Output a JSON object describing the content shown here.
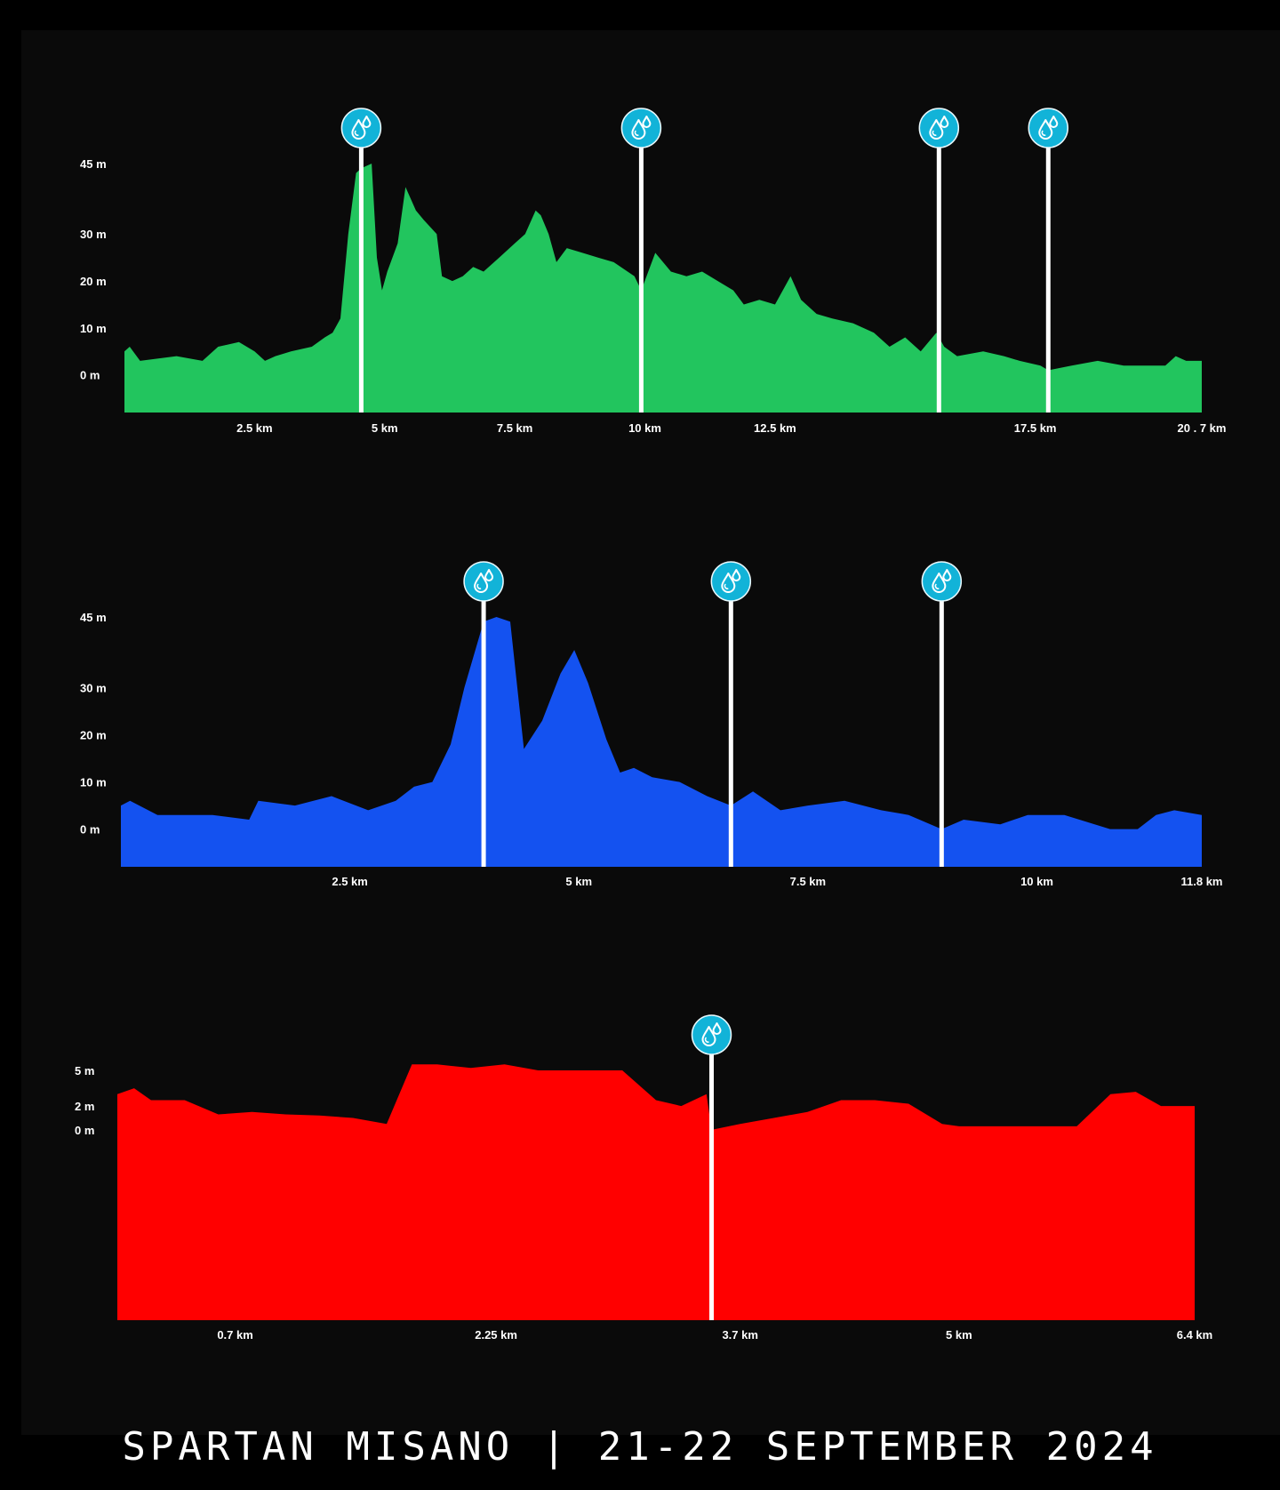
{
  "footer": "SPARTAN MISANO | 21-22 SEPTEMBER 2024",
  "chart_data": [
    {
      "type": "area",
      "color": "#22c55e",
      "xlim": [
        0,
        20.7
      ],
      "ylim": [
        -8,
        45
      ],
      "xticks": [
        {
          "v": 2.5,
          "label": "2.5 km"
        },
        {
          "v": 5,
          "label": "5 km"
        },
        {
          "v": 7.5,
          "label": "7.5 km"
        },
        {
          "v": 10,
          "label": "10 km"
        },
        {
          "v": 12.5,
          "label": "12.5 km"
        },
        {
          "v": 17.5,
          "label": "17.5 km"
        },
        {
          "v": 20.7,
          "label": "20 . 7 km"
        }
      ],
      "yticks": [
        {
          "v": 45,
          "label": "45 m"
        },
        {
          "v": 30,
          "label": "30 m"
        },
        {
          "v": 20,
          "label": "20 m"
        },
        {
          "v": 10,
          "label": "10 m"
        },
        {
          "v": 0,
          "label": "0 m"
        }
      ],
      "water_stations_km": [
        4.55,
        9.93,
        15.65,
        17.75
      ],
      "x": [
        0,
        0.1,
        0.3,
        1.0,
        1.5,
        1.8,
        2.2,
        2.5,
        2.7,
        2.9,
        3.2,
        3.6,
        3.85,
        4.0,
        4.15,
        4.3,
        4.45,
        4.55,
        4.75,
        4.85,
        4.95,
        5.05,
        5.25,
        5.4,
        5.6,
        5.75,
        6.0,
        6.1,
        6.3,
        6.5,
        6.7,
        6.9,
        7.2,
        7.5,
        7.7,
        7.9,
        8.0,
        8.15,
        8.3,
        8.5,
        8.8,
        9.1,
        9.4,
        9.8,
        9.93,
        10.2,
        10.5,
        10.8,
        11.1,
        11.4,
        11.7,
        11.9,
        12.2,
        12.5,
        12.8,
        13.0,
        13.3,
        13.6,
        14.0,
        14.4,
        14.7,
        15.0,
        15.3,
        15.6,
        15.75,
        16.0,
        16.5,
        16.9,
        17.2,
        17.6,
        17.75,
        18.2,
        18.7,
        19.2,
        19.6,
        20.0,
        20.2,
        20.4,
        20.7
      ],
      "y": [
        5,
        6,
        3,
        4,
        3,
        6,
        7,
        5,
        3,
        4,
        5,
        6,
        8,
        9,
        12,
        30,
        43,
        44,
        45,
        25,
        18,
        22,
        28,
        40,
        35,
        33,
        30,
        21,
        20,
        21,
        23,
        22,
        25,
        28,
        30,
        35,
        34,
        30,
        24,
        27,
        26,
        25,
        24,
        21,
        18,
        26,
        22,
        21,
        22,
        20,
        18,
        15,
        16,
        15,
        21,
        16,
        13,
        12,
        11,
        9,
        6,
        8,
        5,
        9,
        6,
        4,
        5,
        4,
        3,
        2,
        1,
        2,
        3,
        2,
        2,
        2,
        4,
        3,
        3
      ]
    },
    {
      "type": "area",
      "color": "#1452f0",
      "xlim": [
        0,
        11.8
      ],
      "ylim": [
        -8,
        45
      ],
      "xticks": [
        {
          "v": 2.5,
          "label": "2.5 km"
        },
        {
          "v": 5,
          "label": "5 km"
        },
        {
          "v": 7.5,
          "label": "7.5 km"
        },
        {
          "v": 10,
          "label": "10 km"
        },
        {
          "v": 11.8,
          "label": "11.8 km"
        }
      ],
      "yticks": [
        {
          "v": 45,
          "label": "45 m"
        },
        {
          "v": 30,
          "label": "30 m"
        },
        {
          "v": 20,
          "label": "20 m"
        },
        {
          "v": 10,
          "label": "10 m"
        },
        {
          "v": 0,
          "label": "0 m"
        }
      ],
      "water_stations_km": [
        3.96,
        6.66,
        8.96
      ],
      "x": [
        0,
        0.1,
        0.4,
        1.0,
        1.4,
        1.5,
        1.9,
        2.3,
        2.7,
        3.0,
        3.2,
        3.4,
        3.6,
        3.75,
        3.96,
        4.1,
        4.25,
        4.4,
        4.6,
        4.8,
        4.95,
        5.1,
        5.3,
        5.45,
        5.6,
        5.8,
        6.1,
        6.4,
        6.66,
        6.9,
        7.2,
        7.5,
        7.9,
        8.3,
        8.6,
        8.96,
        9.2,
        9.6,
        9.9,
        10.3,
        10.8,
        11.1,
        11.3,
        11.5,
        11.8
      ],
      "y": [
        5,
        6,
        3,
        3,
        2,
        6,
        5,
        7,
        4,
        6,
        9,
        10,
        18,
        30,
        44,
        45,
        44,
        17,
        23,
        33,
        38,
        31,
        19,
        12,
        13,
        11,
        10,
        7,
        5,
        8,
        4,
        5,
        6,
        4,
        3,
        0,
        2,
        1,
        3,
        3,
        0,
        0,
        3,
        4,
        3
      ]
    },
    {
      "type": "area",
      "color": "#ff0000",
      "xlim": [
        0,
        6.4
      ],
      "ylim": [
        -16,
        5
      ],
      "xticks": [
        {
          "v": 0.7,
          "label": "0.7 km"
        },
        {
          "v": 2.25,
          "label": "2.25 km"
        },
        {
          "v": 3.7,
          "label": "3.7 km"
        },
        {
          "v": 5,
          "label": "5 km"
        },
        {
          "v": 6.4,
          "label": "6.4 km"
        }
      ],
      "yticks": [
        {
          "v": 5,
          "label": "5 m"
        },
        {
          "v": 2,
          "label": "2 m"
        },
        {
          "v": 0,
          "label": "0 m"
        }
      ],
      "water_stations_km": [
        3.53
      ],
      "x": [
        0,
        0.1,
        0.2,
        0.4,
        0.6,
        0.8,
        1.0,
        1.2,
        1.4,
        1.6,
        1.75,
        1.9,
        2.1,
        2.3,
        2.5,
        2.65,
        2.8,
        3.0,
        3.2,
        3.35,
        3.5,
        3.53,
        3.7,
        3.9,
        4.1,
        4.3,
        4.5,
        4.7,
        4.9,
        5.0,
        5.2,
        5.4,
        5.5,
        5.7,
        5.9,
        6.05,
        6.2,
        6.3,
        6.4
      ],
      "y": [
        3,
        3.5,
        2.5,
        2.5,
        1.3,
        1.5,
        1.3,
        1.2,
        1,
        0.5,
        5.5,
        5.5,
        5.2,
        5.5,
        5,
        5,
        5,
        5,
        2.5,
        2,
        3,
        0,
        0.5,
        1,
        1.5,
        2.5,
        2.5,
        2.2,
        0.5,
        0.3,
        0.3,
        0.3,
        0.3,
        0.3,
        3,
        3.2,
        2,
        2,
        2
      ]
    }
  ]
}
